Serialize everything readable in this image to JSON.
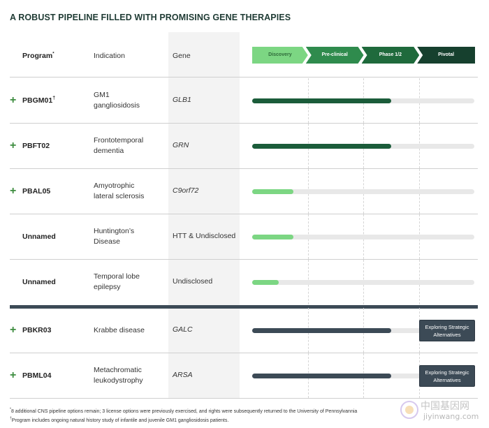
{
  "title": "A ROBUST PIPELINE FILLED WITH PROMISING GENE THERAPIES",
  "headers": {
    "program": "Program",
    "program_mark": "*",
    "indication": "Indication",
    "gene": "Gene"
  },
  "phases": [
    {
      "label": "Discovery",
      "bg": "#7cd683",
      "fg": "#2f6b3a"
    },
    {
      "label": "Pre-clinical",
      "bg": "#2f8b4d",
      "fg": "#ffffff"
    },
    {
      "label": "Phase 1/2",
      "bg": "#1f6a3c",
      "fg": "#ffffff"
    },
    {
      "label": "Pivotal",
      "bg": "#16402e",
      "fg": "#ffffff"
    }
  ],
  "rows": [
    {
      "program": "PBGM01",
      "mark": "†",
      "has_plus": true,
      "indication_1": "GM1",
      "indication_2": "gangliosidosis",
      "gene": "GLB1",
      "gene_italic": true,
      "progress": 0.625,
      "bar_color": "#1b5c3a",
      "badge_1": "",
      "badge_2": ""
    },
    {
      "program": "PBFT02",
      "mark": "",
      "has_plus": true,
      "indication_1": "Frontotemporal",
      "indication_2": "dementia",
      "gene": "GRN",
      "gene_italic": true,
      "progress": 0.625,
      "bar_color": "#1b5c3a",
      "badge_1": "",
      "badge_2": ""
    },
    {
      "program": "PBAL05",
      "mark": "",
      "has_plus": true,
      "indication_1": "Amyotrophic",
      "indication_2": "lateral sclerosis",
      "gene": "C9orf72",
      "gene_italic": true,
      "progress": 0.185,
      "bar_color": "#7cd683",
      "badge_1": "",
      "badge_2": ""
    },
    {
      "program": "Unnamed",
      "mark": "",
      "has_plus": false,
      "indication_1": "Huntington’s",
      "indication_2": "Disease",
      "gene": "HTT & Undisclosed",
      "gene_italic": false,
      "progress": 0.185,
      "bar_color": "#7cd683",
      "badge_1": "",
      "badge_2": ""
    },
    {
      "program": "Unnamed",
      "mark": "",
      "has_plus": false,
      "indication_1": "Temporal lobe",
      "indication_2": "epilepsy",
      "gene": "Undisclosed",
      "gene_italic": false,
      "progress": 0.12,
      "bar_color": "#7cd683",
      "badge_1": "",
      "badge_2": ""
    },
    {
      "program": "PBKR03",
      "mark": "",
      "has_plus": true,
      "indication_1": "Krabbe disease",
      "indication_2": "",
      "gene": "GALC",
      "gene_italic": true,
      "progress": 0.625,
      "bar_color": "#3c4a56",
      "badge_1": "Exploring Strategic",
      "badge_2": "Alternatives"
    },
    {
      "program": "PBML04",
      "mark": "",
      "has_plus": true,
      "indication_1": "Metachromatic",
      "indication_2": "leukodystrophy",
      "gene": "ARSA",
      "gene_italic": true,
      "progress": 0.625,
      "bar_color": "#3c4a56",
      "badge_1": "Exploring Strategic",
      "badge_2": "Alternatives"
    }
  ],
  "footnotes": {
    "note1_mark": "*",
    "note1": "8 additional CNS pipeline options remain; 3 license options were previously exercised, and rights were subsequently returned to the University of Pennsylvannia",
    "note2_mark": "†",
    "note2": "Program includes ongoing natural history study of infantile and juvenile GM1 gangliosidosis patients."
  },
  "watermark": {
    "cn": "中国基因网",
    "en": "jiyinwang.com"
  },
  "colors": {
    "title": "#1f3b34",
    "plus": "#3d8c3f",
    "track": "#e8e8e8",
    "gene_column": "#f3f3f3",
    "thick_divider": "#3c4a56"
  }
}
